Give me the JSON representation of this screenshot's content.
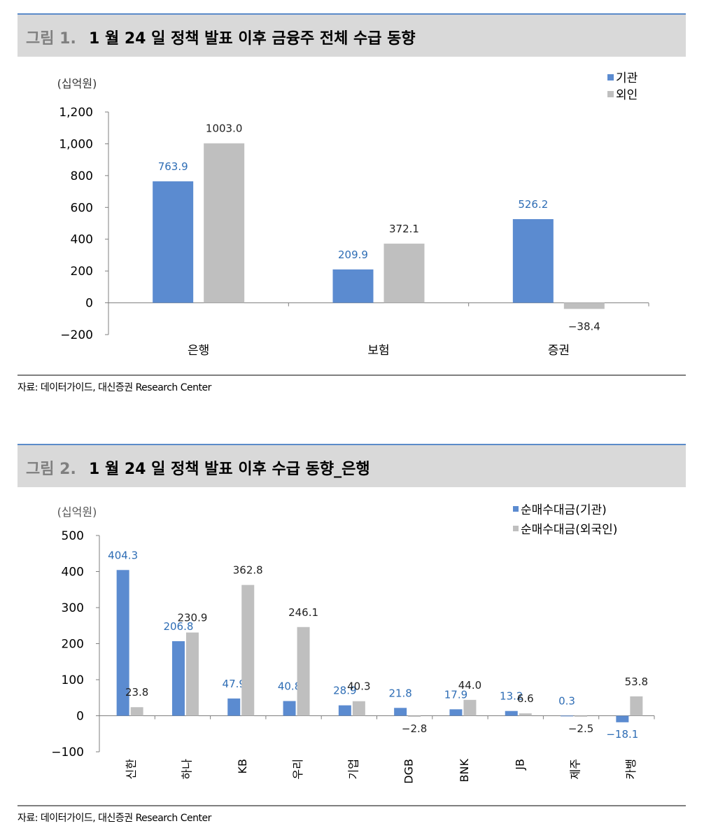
{
  "figures": [
    {
      "number": "그림 1.",
      "title": "1 월 24 일 정책 발표 이후 금융주 전체 수급 동향",
      "source": "자료: 데이터가이드, 대신증권 Research Center",
      "chart_data": {
        "type": "bar",
        "unit_label": "(십억원)",
        "categories": [
          "은행",
          "보험",
          "증권"
        ],
        "series": [
          {
            "name": "기관",
            "color": "#5b8bd0",
            "label_color": "#2e6db5",
            "values": [
              763.9,
              209.9,
              526.2
            ],
            "labels": [
              "763.9",
              "209.9",
              "526.2"
            ]
          },
          {
            "name": "외인",
            "color": "#bfbfbf",
            "label_color": "#222222",
            "values": [
              1003.0,
              372.1,
              -38.4
            ],
            "labels": [
              "1003.0",
              "372.1",
              "−38.4"
            ]
          }
        ],
        "ylim": [
          -200,
          1200
        ],
        "yticks": [
          -200,
          0,
          200,
          400,
          600,
          800,
          1000,
          1200
        ],
        "ytick_labels": [
          "−200",
          "0",
          "200",
          "400",
          "600",
          "800",
          "1,000",
          "1,200"
        ],
        "legend_position": "top-right"
      }
    },
    {
      "number": "그림 2.",
      "title": "1 월 24 일 정책 발표 이후 수급 동향_은행",
      "source": "자료: 데이터가이드, 대신증권 Research Center",
      "chart_data": {
        "type": "bar",
        "unit_label": "(십억원)",
        "categories": [
          "신한",
          "하나",
          "KB",
          "우리",
          "기업",
          "DGB",
          "BNK",
          "JB",
          "제주",
          "카뱅"
        ],
        "series": [
          {
            "name": "순매수대금(기관)",
            "color": "#5b8bd0",
            "label_color": "#2e6db5",
            "values": [
              404.3,
              206.8,
              47.9,
              40.8,
              28.9,
              21.8,
              17.9,
              13.2,
              0.3,
              -18.1
            ],
            "labels": [
              "404.3",
              "206.8",
              "47.9",
              "40.8",
              "28.9",
              "21.8",
              "17.9",
              "13.2",
              "0.3",
              "−18.1"
            ]
          },
          {
            "name": "순매수대금(외국인)",
            "color": "#bfbfbf",
            "label_color": "#222222",
            "values": [
              23.8,
              230.9,
              362.8,
              246.1,
              40.3,
              -2.8,
              44.0,
              6.6,
              -2.5,
              53.8
            ],
            "labels": [
              "23.8",
              "230.9",
              "362.8",
              "246.1",
              "40.3",
              "−2.8",
              "44.0",
              "6.6",
              "−2.5",
              "53.8"
            ]
          }
        ],
        "ylim": [
          -100,
          500
        ],
        "yticks": [
          -100,
          0,
          100,
          200,
          300,
          400,
          500
        ],
        "ytick_labels": [
          "−100",
          "0",
          "100",
          "200",
          "300",
          "400",
          "500"
        ],
        "legend_position": "top-right"
      }
    }
  ]
}
